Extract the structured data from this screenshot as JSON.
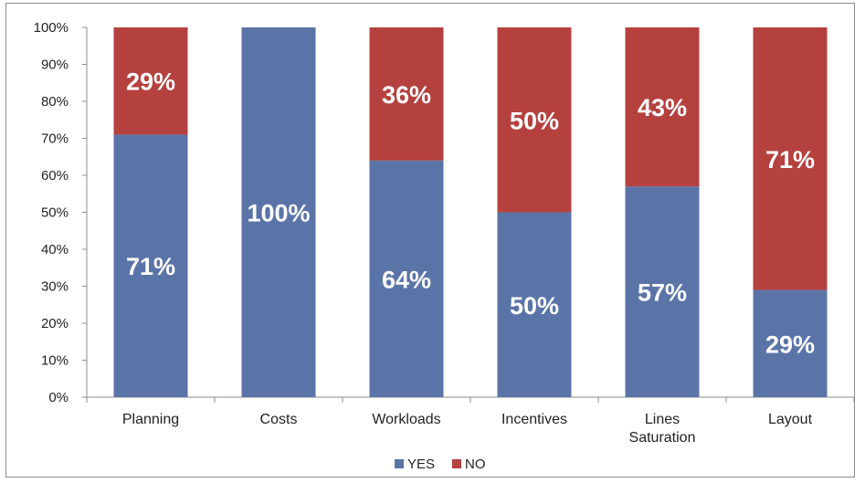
{
  "chart_data": {
    "type": "bar",
    "stacked": true,
    "categories": [
      "Planning",
      "Costs",
      "Workloads",
      "Incentives",
      "Lines Saturation",
      "Layout"
    ],
    "category_lines": [
      [
        "Planning"
      ],
      [
        "Costs"
      ],
      [
        "Workloads"
      ],
      [
        "Incentives"
      ],
      [
        "Lines",
        "Saturation"
      ],
      [
        "Layout"
      ]
    ],
    "series": [
      {
        "name": "YES",
        "color": "#5b74a8",
        "values": [
          71,
          100,
          64,
          50,
          57,
          29
        ],
        "labels": [
          "71%",
          "100%",
          "64%",
          "50%",
          "57%",
          "29%"
        ]
      },
      {
        "name": "NO",
        "color": "#b5413f",
        "values": [
          29,
          0,
          36,
          50,
          43,
          71
        ],
        "labels": [
          "29%",
          "",
          "36%",
          "50%",
          "43%",
          "71%"
        ]
      }
    ],
    "ylim": [
      0,
      100
    ],
    "yticks": [
      "0%",
      "10%",
      "20%",
      "30%",
      "40%",
      "50%",
      "60%",
      "70%",
      "80%",
      "90%",
      "100%"
    ],
    "title": "",
    "xlabel": "",
    "ylabel": "",
    "legend_position": "bottom",
    "grid": false
  }
}
